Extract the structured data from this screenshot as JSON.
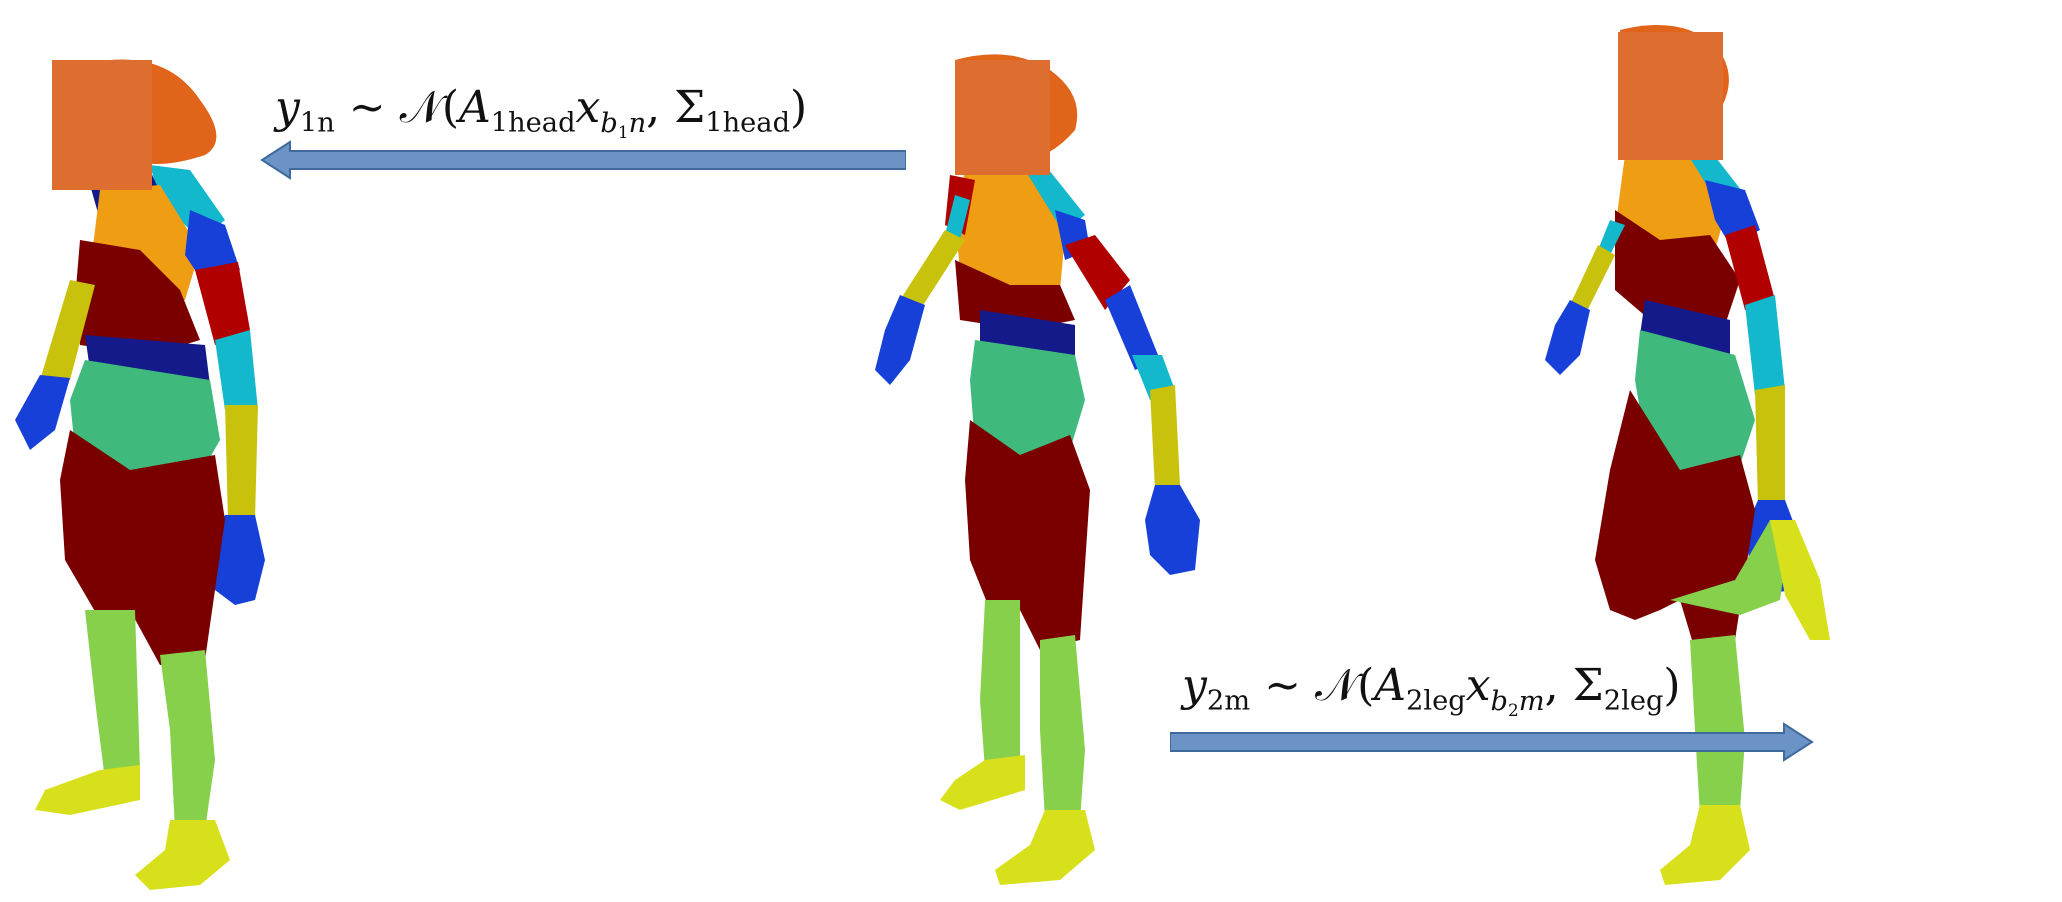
{
  "formulas": {
    "top": {
      "y": "y",
      "y_sub": "1n",
      "sim": "∼",
      "N": "𝒩",
      "open": "(",
      "A": "A",
      "A_sub": "1head",
      "x": "x",
      "x_sub_b": "b",
      "x_sub_idx": "1",
      "x_sub_n": "n",
      "comma": ",",
      "Sigma": "Σ",
      "Sigma_sub": "1head",
      "close": ")"
    },
    "bottom": {
      "y": "y",
      "y_sub": "2m",
      "sim": "∼",
      "N": "𝒩",
      "open": "(",
      "A": "A",
      "A_sub": "2leg",
      "x": "x",
      "x_sub_b": "b",
      "x_sub_idx": "2",
      "x_sub_n": "m",
      "comma": ",",
      "Sigma": "Σ",
      "Sigma_sub": "2leg",
      "close": ")"
    }
  },
  "colors": {
    "arrow_fill": "#6b93c6",
    "arrow_stroke": "#3f6a9e",
    "face_mask": "#dd6e2f",
    "head_orange": "#e0641a",
    "dark_red": "#7a0000",
    "red": "#b10000",
    "light_orange": "#ef9d12",
    "teal_green": "#3fba7c",
    "navy": "#141a8a",
    "blue": "#1740d8",
    "cyan": "#14b8cc",
    "yellow_arm": "#c9c20c",
    "green_leg": "#86d04c",
    "yellow_foot": "#d8e01c"
  },
  "figures": [
    {
      "pose": "standing",
      "mask": true
    },
    {
      "pose": "standing-arms-out",
      "mask": true
    },
    {
      "pose": "knee-raised",
      "mask": true
    }
  ]
}
